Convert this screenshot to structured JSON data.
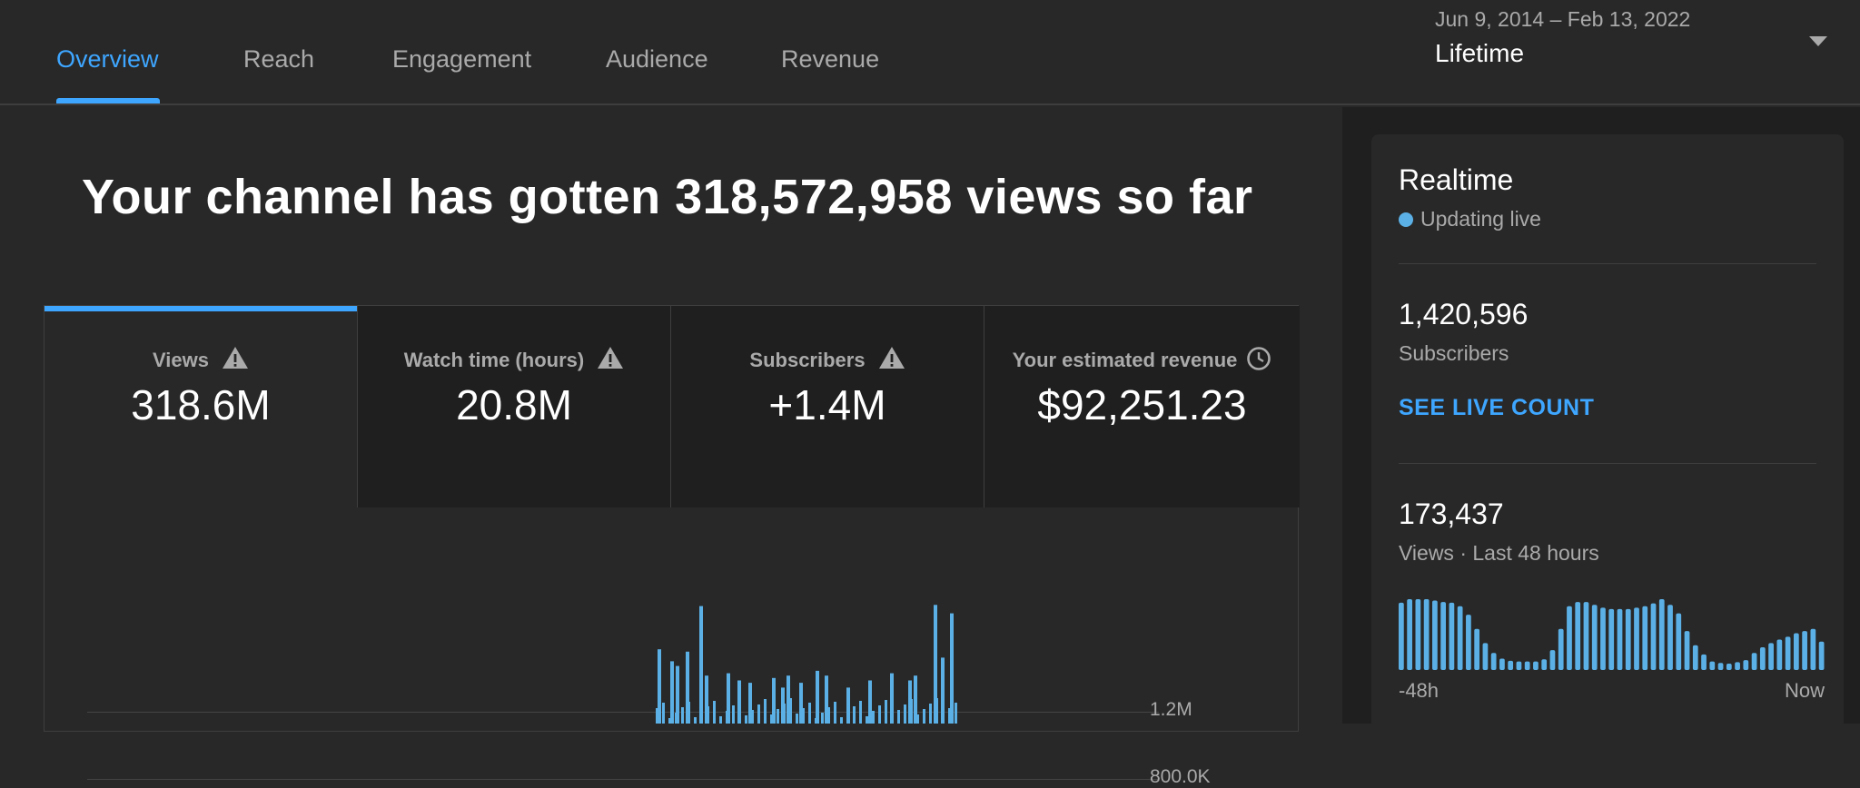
{
  "tabs": [
    {
      "label": "Overview",
      "active": true
    },
    {
      "label": "Reach",
      "active": false
    },
    {
      "label": "Engagement",
      "active": false
    },
    {
      "label": "Audience",
      "active": false
    },
    {
      "label": "Revenue",
      "active": false
    }
  ],
  "date_selector": {
    "range": "Jun 9, 2014 – Feb 13, 2022",
    "period": "Lifetime"
  },
  "headline": "Your channel has gotten 318,572,958 views so far",
  "metrics": [
    {
      "label": "Views",
      "value": "318.6M",
      "icon": "warning-icon"
    },
    {
      "label": "Watch time (hours)",
      "value": "20.8M",
      "icon": "warning-icon"
    },
    {
      "label": "Subscribers",
      "value": "+1.4M",
      "icon": "warning-icon"
    },
    {
      "label": "Your estimated revenue",
      "value": "$92,251.23",
      "icon": "clock-icon"
    }
  ],
  "colors": {
    "accent": "#3ea6ff",
    "bar": "#5bb0e6",
    "background": "#282828",
    "panel": "#1f1f1f"
  },
  "chart_data": {
    "type": "bar",
    "series": [
      {
        "values": [
          0,
          0,
          0,
          0,
          0,
          0,
          0,
          0,
          0,
          0,
          0,
          0,
          0,
          0,
          0,
          0,
          0,
          0,
          0,
          0,
          0,
          0,
          0,
          0,
          0,
          0,
          0,
          0,
          0,
          0,
          0,
          0,
          0,
          0,
          0,
          0,
          0,
          0,
          0,
          0,
          0,
          0,
          0,
          0,
          0,
          0,
          0,
          0,
          0,
          0,
          0,
          0,
          0,
          0,
          0,
          0,
          0,
          0,
          0,
          0,
          0,
          0,
          0,
          0,
          0,
          0,
          0,
          0,
          0,
          0,
          0,
          0,
          0,
          0,
          0,
          0,
          0,
          0,
          0,
          0,
          0,
          0,
          0,
          0,
          0,
          0,
          0,
          0,
          0,
          0,
          0,
          0,
          0,
          0,
          0,
          0,
          0,
          0,
          0,
          0,
          0,
          0,
          0,
          0,
          0,
          0,
          0,
          0,
          0,
          0,
          0,
          0,
          0,
          0,
          0,
          0,
          0,
          0,
          0,
          0,
          0,
          0,
          0,
          0,
          0,
          0,
          0,
          0,
          0,
          0,
          0,
          0,
          0,
          0,
          0,
          0,
          0,
          0,
          0,
          0,
          0,
          0,
          0,
          0,
          0,
          0,
          0,
          0,
          0,
          0,
          0,
          0,
          0,
          0,
          0,
          0,
          0,
          0,
          0,
          0,
          0,
          0,
          0,
          0,
          0,
          0,
          0,
          0,
          0,
          0,
          0,
          0,
          0,
          0,
          0,
          0,
          0,
          0,
          0,
          0,
          0,
          0,
          0,
          0,
          0,
          0,
          0,
          0,
          0,
          0,
          0,
          0,
          0,
          0,
          0,
          0,
          0,
          0,
          0,
          0,
          0,
          0,
          0,
          0,
          0,
          0,
          0,
          0,
          0,
          0,
          0,
          0,
          0,
          0,
          0,
          0,
          0,
          0,
          0,
          0,
          0,
          0,
          0,
          0,
          0,
          0,
          0,
          0,
          0,
          0,
          0,
          0,
          0,
          0,
          0,
          0,
          0,
          0,
          0,
          0,
          0,
          0,
          0,
          0,
          0,
          0,
          0,
          0,
          0,
          0,
          0,
          0,
          0,
          0,
          0,
          0,
          0,
          0,
          0,
          0,
          0,
          0,
          0,
          0,
          0,
          0,
          0,
          0,
          0,
          0,
          0,
          0,
          0,
          0,
          0,
          0,
          0,
          0,
          0,
          0,
          0,
          0,
          0,
          0,
          0,
          0,
          0,
          0,
          0,
          0,
          0,
          0,
          0,
          0,
          0,
          0,
          0,
          0,
          0,
          0,
          0,
          0,
          0,
          0,
          0,
          0,
          0,
          0,
          0,
          0,
          0,
          0,
          0,
          0,
          0,
          0,
          0,
          0,
          0,
          0,
          0,
          0,
          0,
          0,
          0,
          0,
          0,
          0,
          0,
          0,
          0,
          0,
          0,
          0,
          0,
          0,
          0,
          0,
          0,
          0,
          0,
          0,
          0,
          0,
          0,
          0,
          0,
          0,
          0,
          0,
          0,
          0,
          0,
          0,
          0,
          0,
          0,
          0,
          0,
          0,
          0,
          0,
          0,
          0,
          0,
          0,
          0,
          0,
          0,
          0,
          0,
          0,
          0,
          0,
          0,
          0,
          0,
          0,
          0,
          0,
          0,
          0,
          0,
          0,
          0,
          0,
          0,
          0,
          0,
          0,
          0,
          0,
          0,
          0,
          0,
          0,
          0,
          0,
          0,
          0,
          0,
          0,
          0,
          0,
          0,
          0,
          0,
          0,
          0,
          0,
          0,
          0,
          0,
          0,
          0,
          0,
          0,
          0,
          0,
          0,
          0,
          0,
          0,
          0,
          0,
          0,
          0,
          0,
          0,
          0,
          0,
          0,
          0,
          0,
          0,
          0,
          0,
          0,
          0,
          0,
          0,
          0,
          0,
          0,
          0,
          0,
          0,
          0,
          0,
          0,
          0,
          0,
          0,
          0,
          0,
          0,
          0,
          0,
          0,
          0,
          0,
          0,
          0,
          0,
          0,
          0,
          0,
          0,
          0,
          0,
          0,
          0,
          0,
          0,
          0,
          0,
          0,
          0,
          0,
          0,
          0,
          0,
          0,
          0,
          0,
          0,
          0,
          0,
          0,
          0,
          0,
          0,
          0,
          0,
          0,
          0,
          0,
          0,
          0,
          0,
          0,
          0,
          0,
          0,
          0,
          0,
          0,
          0,
          0,
          0,
          0,
          0,
          0,
          0,
          0,
          0,
          0,
          0,
          0,
          0,
          0,
          0,
          0,
          0,
          0,
          0,
          0,
          0,
          0,
          0,
          0,
          0,
          0,
          0,
          0,
          0,
          0,
          0,
          0,
          0,
          0,
          0,
          0,
          0,
          0,
          0,
          0,
          0,
          0,
          0,
          0,
          0,
          0,
          0,
          0,
          0,
          0,
          0,
          0,
          0,
          0,
          0,
          0,
          0,
          0,
          0,
          0,
          0,
          0,
          0,
          0,
          0,
          0,
          0,
          0,
          0,
          0,
          0,
          0,
          0,
          0,
          0,
          0,
          0,
          0,
          0,
          0,
          0,
          0,
          0,
          0,
          0,
          0,
          0,
          0,
          0,
          0,
          0,
          0,
          0,
          0,
          0,
          0,
          0,
          0,
          0,
          0,
          0,
          0,
          0,
          0,
          0,
          0,
          0,
          0,
          0,
          0,
          0,
          0,
          0,
          0,
          0,
          0,
          0,
          0,
          0,
          0,
          0,
          0,
          0,
          0,
          0,
          0,
          0,
          0,
          0,
          0,
          0,
          0,
          0,
          0,
          0,
          0,
          0,
          0,
          0,
          0,
          0,
          0,
          0,
          0,
          0,
          0,
          0,
          0,
          0,
          0,
          0,
          0,
          0,
          0,
          0,
          0,
          0,
          0,
          0,
          0,
          0,
          0,
          0,
          0,
          0,
          0,
          0,
          0,
          0,
          0,
          0,
          0,
          0,
          0,
          0,
          0,
          0,
          0,
          0,
          0,
          0,
          0,
          0,
          0,
          0,
          0,
          0,
          0,
          0,
          0,
          0,
          0,
          0,
          0,
          0,
          0,
          0,
          0,
          0,
          0,
          0,
          0,
          0,
          0,
          0,
          0,
          0,
          0,
          0,
          0,
          0,
          0,
          0,
          0,
          0,
          0,
          0,
          0,
          0,
          0,
          0,
          0,
          0,
          0,
          0,
          0,
          0,
          0,
          0,
          0,
          0,
          0,
          0,
          0,
          0,
          0,
          0,
          0,
          0,
          0,
          0,
          0,
          0,
          0,
          0,
          0,
          0,
          0,
          0,
          0,
          0,
          0,
          0,
          0,
          0,
          0,
          0,
          0,
          0,
          0,
          0,
          0,
          0,
          0,
          0,
          0,
          0,
          0,
          0,
          0,
          0,
          0,
          0,
          0,
          0,
          0,
          0,
          0,
          0,
          0,
          0,
          0,
          0,
          0,
          0,
          0,
          0,
          0,
          0,
          0,
          0,
          0,
          0,
          0,
          0,
          0,
          0,
          0,
          0,
          0,
          0,
          0,
          0,
          0,
          0,
          0,
          0,
          0,
          0,
          0,
          0,
          0,
          0,
          0,
          0,
          0,
          0,
          0,
          0,
          0,
          0,
          0,
          0,
          0,
          0,
          0,
          0,
          0,
          0,
          0,
          0,
          0,
          0,
          0,
          0,
          0,
          0,
          0,
          0,
          0,
          0,
          0,
          0,
          0,
          0,
          0,
          0,
          0,
          0,
          0,
          0,
          0,
          0,
          0,
          0,
          0,
          0,
          0,
          0,
          0,
          0,
          0,
          0,
          0,
          0,
          0,
          0,
          0,
          0,
          0,
          0,
          0,
          0,
          0,
          0,
          0,
          0,
          0,
          0,
          0,
          0,
          0,
          0,
          0,
          0,
          0,
          0,
          0,
          0,
          0,
          0,
          0,
          0
        ]
      }
    ],
    "note_values": [
      {
        "index": 630,
        "value": 520000
      },
      {
        "index": 640,
        "value": 900000
      },
      {
        "index": 660,
        "value": 420000
      },
      {
        "index": 700,
        "value": 380000
      },
      {
        "index": 720,
        "value": 420000
      },
      {
        "index": 740,
        "value": 340000
      },
      {
        "index": 760,
        "value": 400000
      },
      {
        "index": 790,
        "value": 420000
      },
      {
        "index": 830,
        "value": 960000
      },
      {
        "index": 845,
        "value": 880000
      }
    ],
    "yticks": [
      "1.2M",
      "800.0K"
    ],
    "ylim": [
      0,
      1200000
    ]
  },
  "realtime": {
    "title": "Realtime",
    "status": "Updating live",
    "subscribers_value": "1,420,596",
    "subscribers_label": "Subscribers",
    "see_live_label": "SEE LIVE COUNT",
    "views_value": "173,437",
    "views_label": "Views · Last 48 hours",
    "axis_start": "-48h",
    "axis_end": "Now",
    "hourly_views": [
      95,
      100,
      100,
      100,
      98,
      96,
      95,
      90,
      78,
      58,
      38,
      24,
      16,
      13,
      12,
      12,
      12,
      15,
      28,
      58,
      90,
      96,
      96,
      92,
      88,
      86,
      86,
      86,
      88,
      90,
      94,
      100,
      92,
      80,
      55,
      35,
      22,
      12,
      10,
      9,
      11,
      14,
      24,
      32,
      38,
      43,
      47,
      52,
      55,
      58,
      40
    ]
  }
}
